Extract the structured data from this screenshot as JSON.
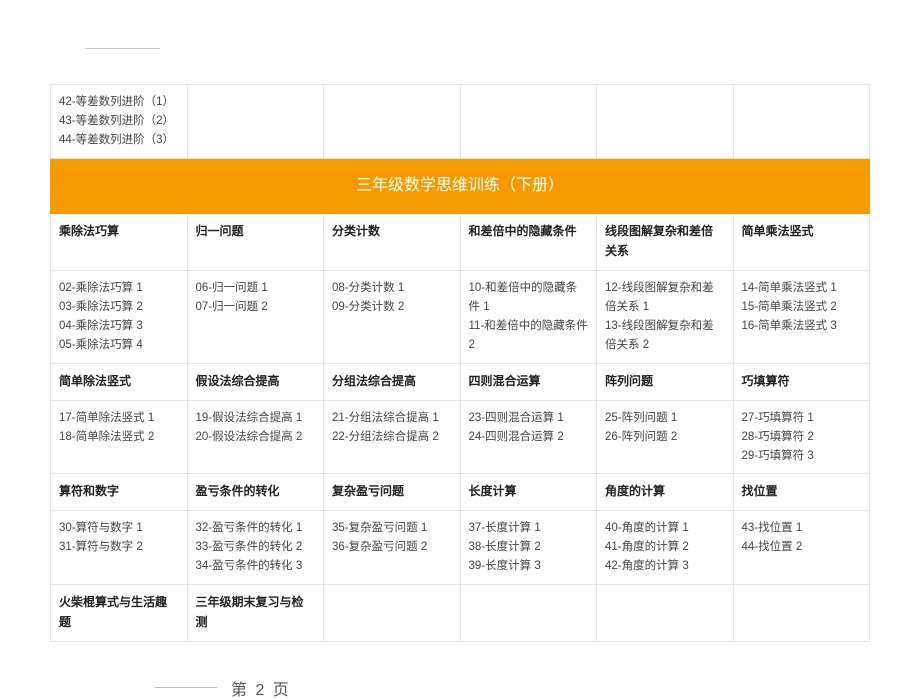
{
  "colors": {
    "header_bg": "#f59b00",
    "header_text": "#ffffff",
    "border": "#e5e5e5",
    "text": "#333333"
  },
  "topFragmentItems": [
    "42-等差数列进阶（1）",
    "43-等差数列进阶（2）",
    "44-等差数列进阶（3）"
  ],
  "bannerTitle": "三年级数学思维训练（下册）",
  "rows": [
    {
      "headers": [
        "乘除法巧算",
        "归一问题",
        "分类计数",
        "和差倍中的隐藏条件",
        "线段图解复杂和差倍关系",
        "简单乘法竖式"
      ],
      "cells": [
        [
          "02-乘除法巧算 1",
          "03-乘除法巧算 2",
          "04-乘除法巧算 3",
          "05-乘除法巧算 4"
        ],
        [
          "06-归一问题 1",
          "07-归一问题 2"
        ],
        [
          "08-分类计数 1",
          "09-分类计数 2"
        ],
        [
          "10-和差倍中的隐藏条件 1",
          "11-和差倍中的隐藏条件 2"
        ],
        [
          "12-线段图解复杂和差倍关系 1",
          "13-线段图解复杂和差倍关系 2"
        ],
        [
          "14-简单乘法竖式 1",
          "15-简单乘法竖式 2",
          "16-简单乘法竖式 3"
        ]
      ]
    },
    {
      "headers": [
        "简单除法竖式",
        "假设法综合提高",
        "分组法综合提高",
        "四则混合运算",
        "阵列问题",
        "巧填算符"
      ],
      "cells": [
        [
          "17-简单除法竖式 1",
          "18-简单除法竖式 2"
        ],
        [
          "19-假设法综合提高 1",
          "20-假设法综合提高 2"
        ],
        [
          "21-分组法综合提高 1",
          "22-分组法综合提高 2"
        ],
        [
          "23-四则混合运算 1",
          "24-四则混合运算 2"
        ],
        [
          "25-阵列问题 1",
          "26-阵列问题 2"
        ],
        [
          "27-巧填算符 1",
          "28-巧填算符 2",
          "29-巧填算符 3"
        ]
      ]
    },
    {
      "headers": [
        "算符和数字",
        "盈亏条件的转化",
        "复杂盈亏问题",
        "长度计算",
        "角度的计算",
        "找位置"
      ],
      "cells": [
        [
          "30-算符与数字 1",
          "31-算符与数字 2"
        ],
        [
          "32-盈亏条件的转化 1",
          "33-盈亏条件的转化 2",
          "34-盈亏条件的转化 3"
        ],
        [
          "35-复杂盈亏问题 1",
          "36-复杂盈亏问题 2"
        ],
        [
          "37-长度计算 1",
          "38-长度计算 2",
          "39-长度计算 3"
        ],
        [
          "40-角度的计算 1",
          "41-角度的计算 2",
          "42-角度的计算 3"
        ],
        [
          "43-找位置 1",
          "44-找位置 2"
        ]
      ]
    },
    {
      "headers": [
        "火柴棍算式与生活趣题",
        "三年级期末复习与检测",
        "",
        "",
        "",
        ""
      ],
      "cells": null
    }
  ],
  "pageNumber": "第 2 页"
}
